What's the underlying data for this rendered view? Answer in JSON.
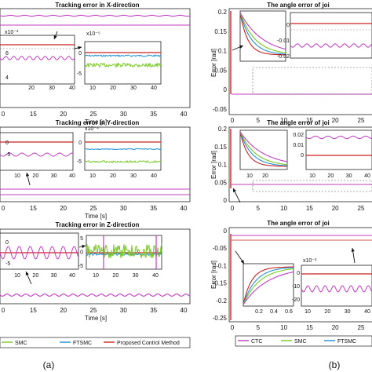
{
  "chart_data": {
    "type": "line",
    "captions": [
      "(a)",
      "(b)"
    ],
    "colors": {
      "CTC": "#c03cc0",
      "SMC": "#77c722",
      "FTSMC": "#1f8fd1",
      "Proposed Control Method": "#cc2222"
    },
    "panels": [
      {
        "id": "a1",
        "title": "Tracking error in X-direction",
        "xlabel": "Time [s]",
        "x_ticks": [
          "0",
          "15",
          "20",
          "25",
          "30",
          "35",
          "40"
        ],
        "insets": [
          {
            "exponent": "x10⁻³",
            "y_ticks": [
              "0",
              "2",
              "4",
              "6"
            ],
            "x_ticks": [
              "10",
              "20",
              "30",
              "40"
            ]
          },
          {
            "exponent": "x10⁻⁵",
            "y_ticks": [
              "0",
              "-5"
            ],
            "x_ticks": [
              "10",
              "20",
              "30",
              "40"
            ]
          }
        ]
      },
      {
        "id": "a2",
        "title": "Tracking error in Y-direction",
        "xlabel": "Time [s]",
        "x_ticks": [
          "0",
          "15",
          "20",
          "25",
          "30",
          "35",
          "40"
        ],
        "insets": [
          {
            "exponent": "",
            "y_ticks": [
              "0",
              "-5"
            ],
            "x_ticks": [
              "10",
              "20",
              "30",
              "40"
            ]
          },
          {
            "exponent": "x10⁻⁴",
            "y_ticks": [
              "0",
              "-5"
            ],
            "x_ticks": [
              "10",
              "20",
              "30",
              "40"
            ]
          }
        ]
      },
      {
        "id": "a3",
        "title": "Tracking error in Z-direction",
        "xlabel": "Time [s]",
        "x_ticks": [
          "0",
          "15",
          "20",
          "25",
          "30",
          "35",
          "40"
        ],
        "insets": [
          {
            "exponent": "",
            "y_ticks": [
              "0",
              "-5"
            ],
            "x_ticks": [
              "10",
              "20",
              "30",
              "40"
            ]
          },
          {
            "exponent": "",
            "y_ticks": [
              "5",
              "0",
              "-5"
            ],
            "x_ticks": [
              "10",
              "20",
              "30",
              "40"
            ]
          }
        ]
      },
      {
        "id": "b1",
        "title": "The angle error of joi",
        "xlabel": "Time [s]",
        "ylabel": "Error [rad]",
        "y_ticks": [
          "0.2",
          "0.15",
          "0.1",
          "0.05",
          "0",
          "-0.05"
        ],
        "x_ticks": [
          "0",
          "5",
          "10",
          "15",
          "20",
          "25"
        ],
        "insets": [
          {
            "exponent": "",
            "y_ticks": [],
            "x_ticks": []
          },
          {
            "exponent": "",
            "y_ticks": [
              "0",
              "-0.01",
              "-0.02"
            ],
            "x_ticks": [
              "10",
              "20",
              "30",
              "40"
            ]
          }
        ]
      },
      {
        "id": "b2",
        "title": "The angle error of joi",
        "xlabel": "Time [s]",
        "ylabel": "Error [rad]",
        "y_ticks": [
          "0.2",
          "0.15",
          "0.1",
          "0.05",
          "0"
        ],
        "x_ticks": [
          "0",
          "5",
          "10",
          "15",
          "20",
          "25"
        ],
        "insets": [
          {
            "exponent": "",
            "y_ticks": [],
            "x_ticks": [
              "10",
              "20",
              "30",
              "40"
            ]
          },
          {
            "exponent": "",
            "y_ticks": [
              "0.02",
              "0.01",
              "0"
            ],
            "x_ticks": [
              "10",
              "20",
              "30",
              "40"
            ]
          }
        ]
      },
      {
        "id": "b3",
        "title": "The angle error of joi",
        "xlabel": "Time [s]",
        "ylabel": "Error [rad]",
        "y_ticks": [
          "0",
          "-0.05",
          "-0.1",
          "-0.15",
          "-0.2",
          "-0.25"
        ],
        "x_ticks": [
          "0",
          "5",
          "10",
          "15",
          "20",
          "25"
        ],
        "insets": [
          {
            "exponent": "",
            "y_ticks": [],
            "x_ticks": [
              "0.2",
              "0.4",
              "0.6"
            ]
          },
          {
            "exponent": "x10⁻³",
            "y_ticks": [
              "0",
              "-10",
              "-20"
            ],
            "x_ticks": [
              "10",
              "20",
              "30",
              "40"
            ]
          }
        ]
      }
    ],
    "legend_a": [
      "SMC",
      "FTSMC",
      "Proposed Control Method"
    ],
    "legend_b": [
      "CTC",
      "SMC",
      "FTSMC"
    ]
  }
}
